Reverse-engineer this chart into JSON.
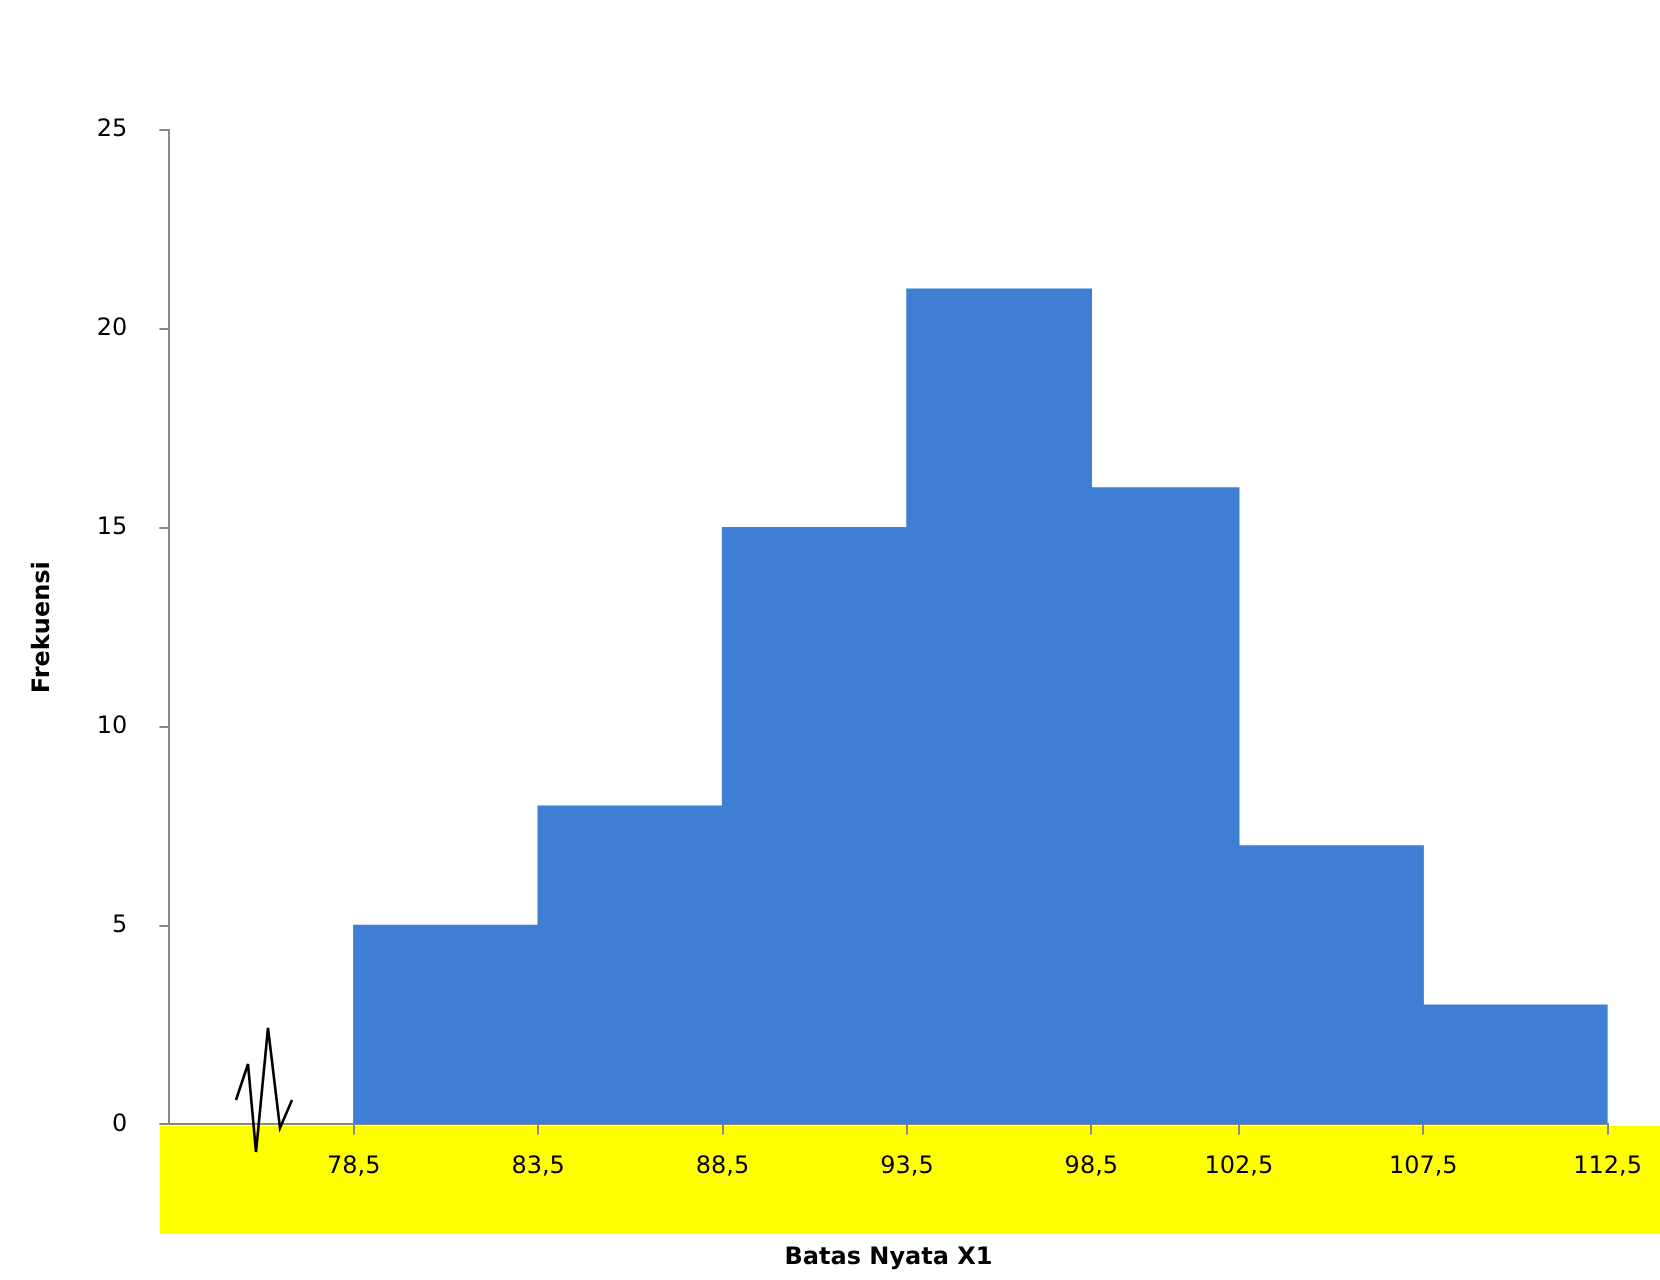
{
  "chart_data": {
    "type": "histogram",
    "xlabel": "Batas Nyata X1",
    "ylabel": "Frekuensi",
    "bins": [
      78.5,
      83.5,
      88.5,
      93.5,
      98.5,
      102.5,
      107.5,
      112.5
    ],
    "values": [
      5,
      8,
      15,
      21,
      16,
      7,
      3
    ],
    "color": "#3f7fd3",
    "xlim": [
      73.5,
      112.5
    ],
    "xticks": [
      {
        "value": 78.5,
        "label": "78,5"
      },
      {
        "value": 83.5,
        "label": "83,5"
      },
      {
        "value": 88.5,
        "label": "88,5"
      },
      {
        "value": 93.5,
        "label": "93,5"
      },
      {
        "value": 98.5,
        "label": "98,5"
      },
      {
        "value": 102.5,
        "label": "102,5"
      },
      {
        "value": 107.5,
        "label": "107,5"
      },
      {
        "value": 112.5,
        "label": "112,5"
      }
    ],
    "ylim": [
      0,
      25
    ],
    "yticks": [
      0,
      5,
      10,
      15,
      20,
      25
    ],
    "grid": false,
    "legend": false
  }
}
